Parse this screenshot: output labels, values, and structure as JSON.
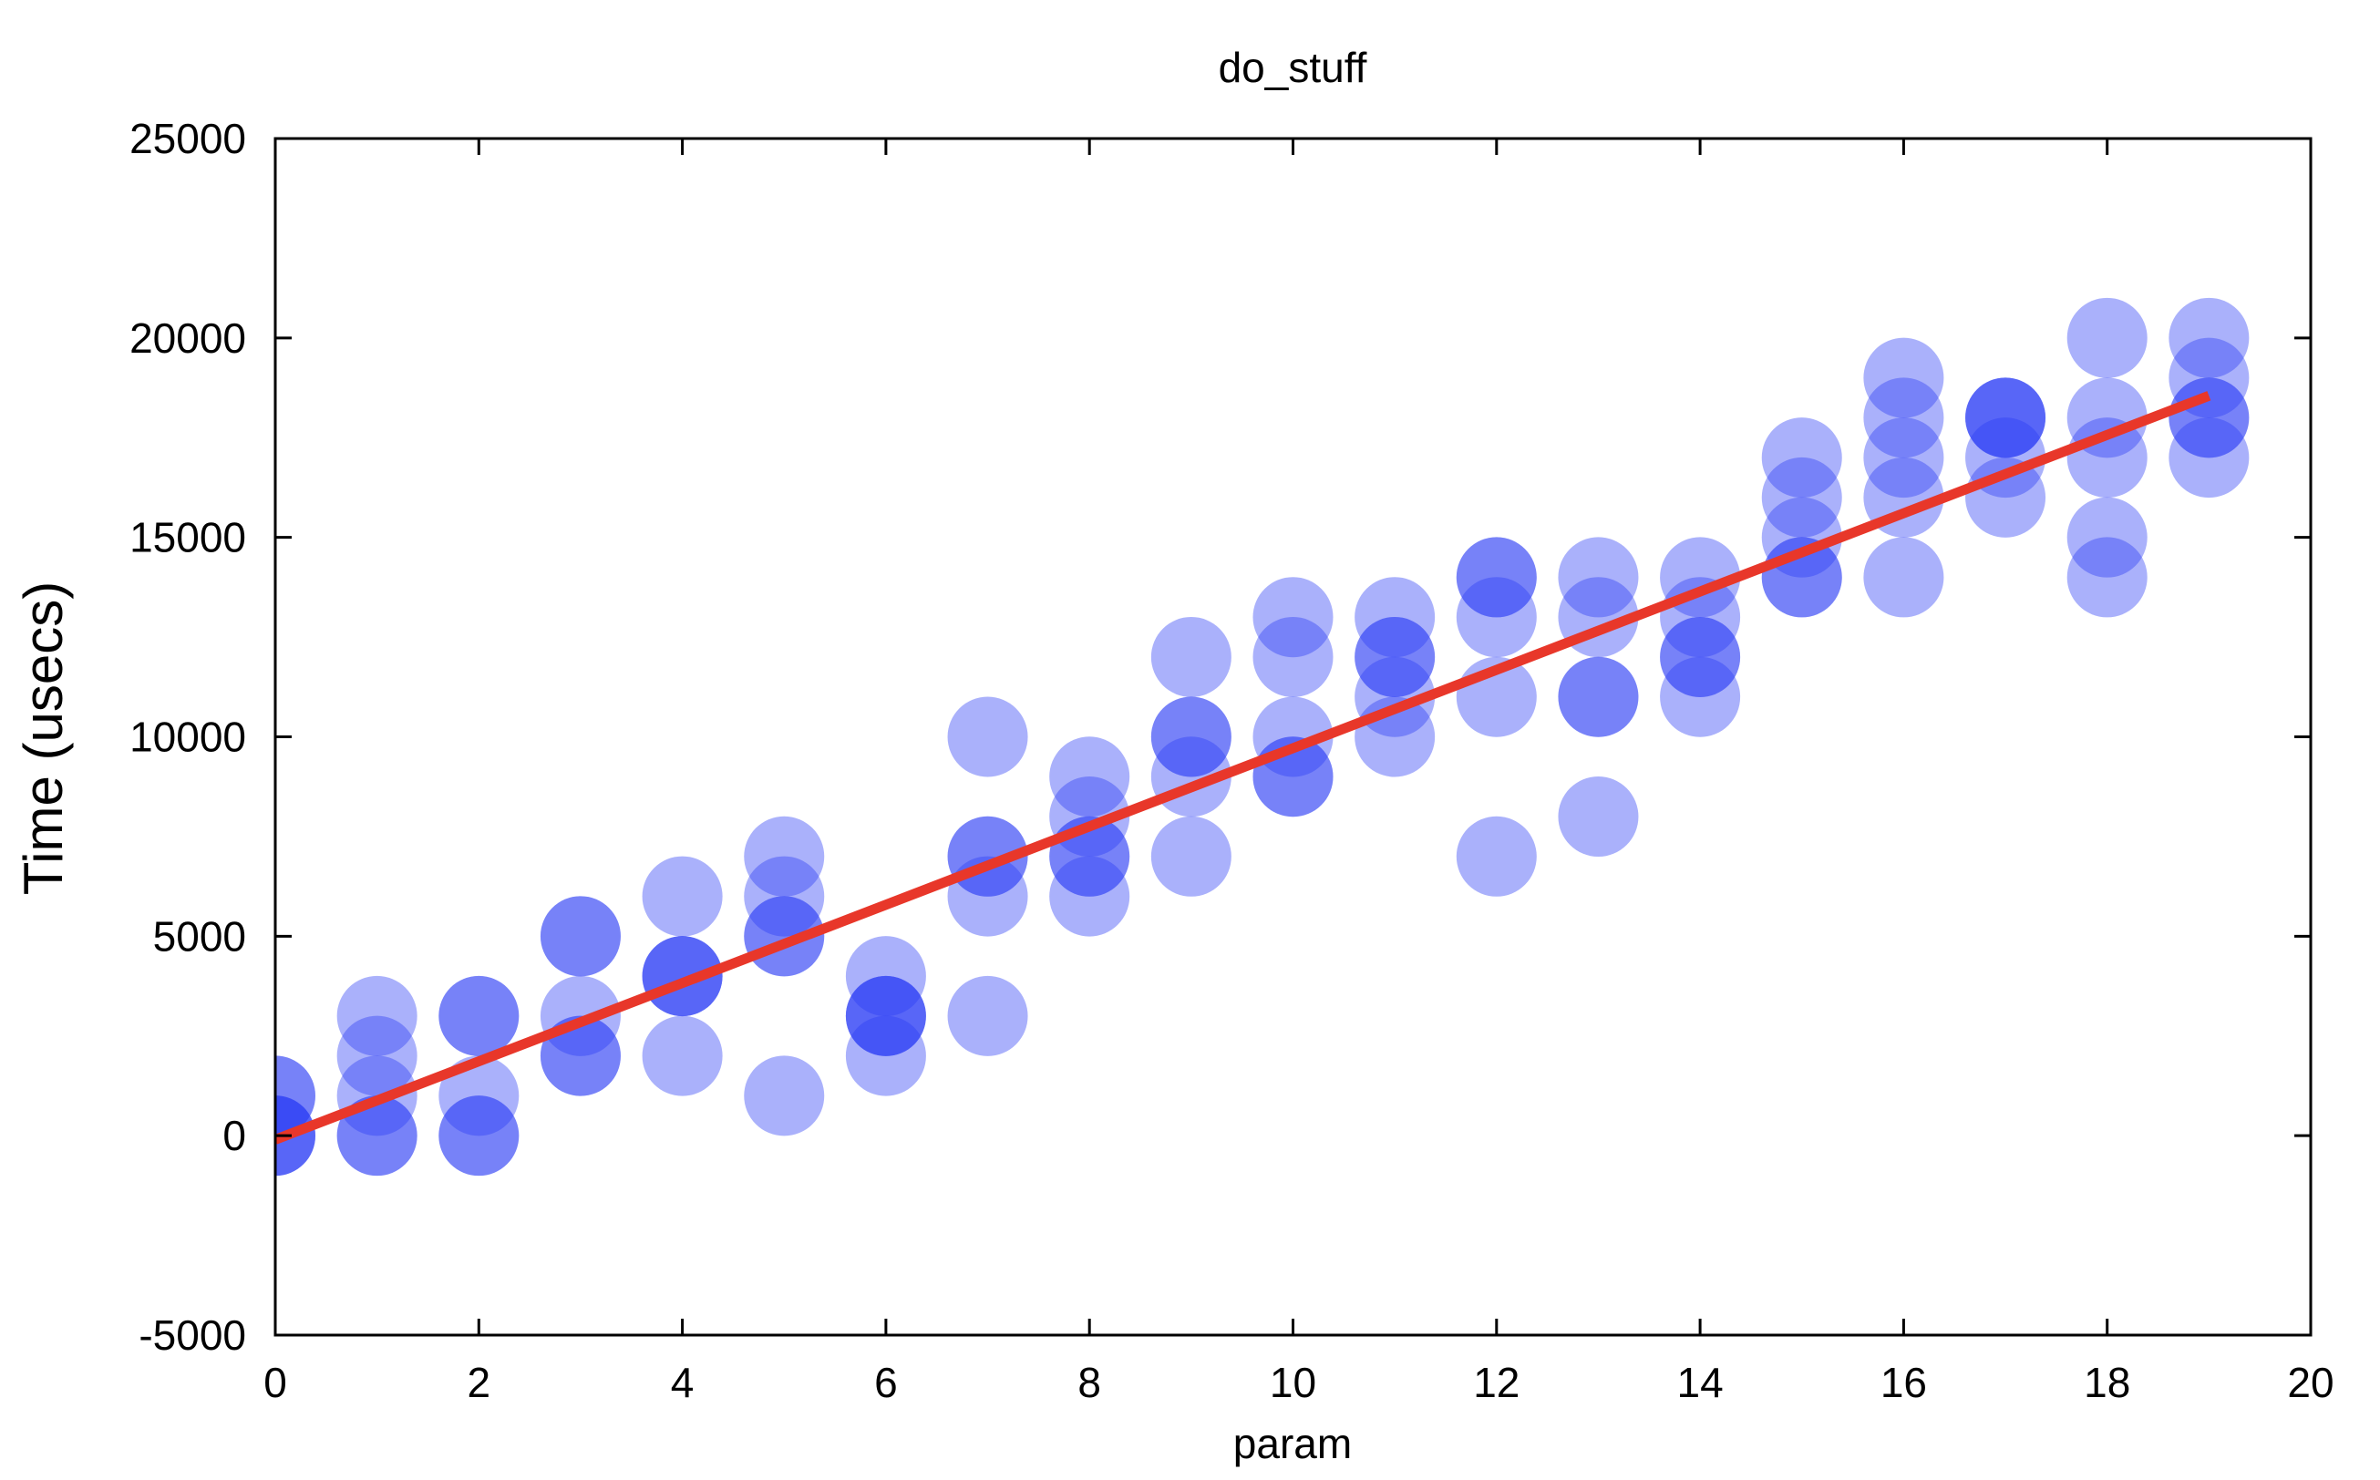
{
  "chart_data": {
    "type": "scatter",
    "title": "do_stuff",
    "xlabel": "param",
    "ylabel": "Time (usecs)",
    "xlim": [
      0,
      20
    ],
    "ylim": [
      -5000,
      25000
    ],
    "x_ticks": [
      0,
      2,
      4,
      6,
      8,
      10,
      12,
      14,
      16,
      18,
      20
    ],
    "y_ticks": [
      -5000,
      0,
      5000,
      10000,
      15000,
      20000,
      25000
    ],
    "x_tick_labels": [
      "0",
      "2",
      "4",
      "6",
      "8",
      "10",
      "12",
      "14",
      "16",
      "18",
      "20"
    ],
    "y_tick_labels": [
      "-5000",
      "0",
      "5000",
      "10000",
      "15000",
      "20000",
      "25000"
    ],
    "grid": false,
    "legend": "none",
    "series": [
      {
        "kind": "scatter",
        "color": "#2a3cf5",
        "opacity": 0.4,
        "points": [
          [
            0,
            0
          ],
          [
            0,
            0
          ],
          [
            0,
            0
          ],
          [
            0,
            1000
          ],
          [
            0,
            1000
          ],
          [
            1,
            0
          ],
          [
            1,
            0
          ],
          [
            1,
            1000
          ],
          [
            1,
            2000
          ],
          [
            1,
            3000
          ],
          [
            2,
            0
          ],
          [
            2,
            0
          ],
          [
            2,
            1000
          ],
          [
            2,
            3000
          ],
          [
            2,
            3000
          ],
          [
            3,
            2000
          ],
          [
            3,
            2000
          ],
          [
            3,
            3000
          ],
          [
            3,
            5000
          ],
          [
            3,
            5000
          ],
          [
            4,
            2000
          ],
          [
            4,
            4000
          ],
          [
            4,
            4000
          ],
          [
            4,
            4000
          ],
          [
            4,
            6000
          ],
          [
            5,
            1000
          ],
          [
            5,
            5000
          ],
          [
            5,
            5000
          ],
          [
            5,
            6000
          ],
          [
            5,
            7000
          ],
          [
            6,
            2000
          ],
          [
            6,
            3000
          ],
          [
            6,
            3000
          ],
          [
            6,
            3000
          ],
          [
            6,
            4000
          ],
          [
            7,
            3000
          ],
          [
            7,
            6000
          ],
          [
            7,
            7000
          ],
          [
            7,
            7000
          ],
          [
            7,
            10000
          ],
          [
            8,
            6000
          ],
          [
            8,
            7000
          ],
          [
            8,
            7000
          ],
          [
            8,
            8000
          ],
          [
            8,
            9000
          ],
          [
            9,
            7000
          ],
          [
            9,
            9000
          ],
          [
            9,
            10000
          ],
          [
            9,
            10000
          ],
          [
            9,
            12000
          ],
          [
            10,
            9000
          ],
          [
            10,
            9000
          ],
          [
            10,
            10000
          ],
          [
            10,
            12000
          ],
          [
            10,
            13000
          ],
          [
            11,
            10000
          ],
          [
            11,
            11000
          ],
          [
            11,
            12000
          ],
          [
            11,
            12000
          ],
          [
            11,
            13000
          ],
          [
            12,
            7000
          ],
          [
            12,
            11000
          ],
          [
            12,
            13000
          ],
          [
            12,
            14000
          ],
          [
            12,
            14000
          ],
          [
            13,
            8000
          ],
          [
            13,
            11000
          ],
          [
            13,
            11000
          ],
          [
            13,
            13000
          ],
          [
            13,
            14000
          ],
          [
            14,
            11000
          ],
          [
            14,
            12000
          ],
          [
            14,
            12000
          ],
          [
            14,
            13000
          ],
          [
            14,
            14000
          ],
          [
            15,
            14000
          ],
          [
            15,
            14000
          ],
          [
            15,
            15000
          ],
          [
            15,
            16000
          ],
          [
            15,
            17000
          ],
          [
            16,
            14000
          ],
          [
            16,
            16000
          ],
          [
            16,
            17000
          ],
          [
            16,
            18000
          ],
          [
            16,
            19000
          ],
          [
            17,
            16000
          ],
          [
            17,
            17000
          ],
          [
            17,
            18000
          ],
          [
            17,
            18000
          ],
          [
            17,
            18000
          ],
          [
            18,
            14000
          ],
          [
            18,
            15000
          ],
          [
            18,
            17000
          ],
          [
            18,
            18000
          ],
          [
            18,
            20000
          ],
          [
            19,
            17000
          ],
          [
            19,
            18000
          ],
          [
            19,
            18000
          ],
          [
            19,
            19000
          ],
          [
            19,
            20000
          ]
        ]
      },
      {
        "kind": "line",
        "color": "#e8372a",
        "x": [
          0,
          19
        ],
        "y": [
          -100,
          18550
        ]
      }
    ]
  }
}
